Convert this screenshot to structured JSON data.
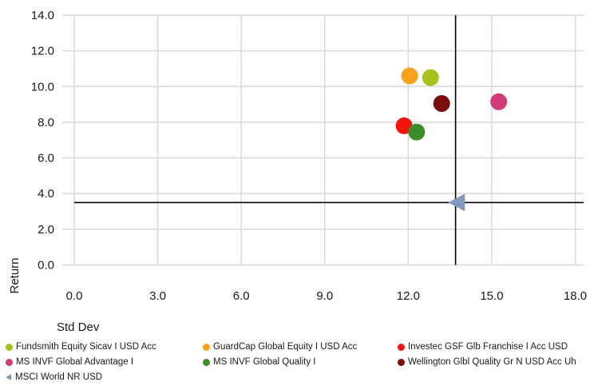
{
  "chart_data": {
    "type": "scatter",
    "xlabel": "Std Dev",
    "ylabel": "Return",
    "xlim": [
      0,
      18.3
    ],
    "ylim": [
      -0.2,
      14.0
    ],
    "x_ticks": [
      "0.0",
      "3.0",
      "6.0",
      "9.0",
      "12.0",
      "15.0",
      "18.0"
    ],
    "y_ticks": [
      "0.0",
      "2.0",
      "4.0",
      "6.0",
      "8.0",
      "10.0",
      "12.0",
      "14.0"
    ],
    "x_tick_values": [
      0,
      3,
      6,
      9,
      12,
      15,
      18
    ],
    "y_tick_values": [
      0,
      2,
      4,
      6,
      8,
      10,
      12,
      14
    ],
    "grid": true,
    "crosshair": {
      "x": 13.7,
      "y": 3.5
    },
    "legend_position": "bottom",
    "series": [
      {
        "name": "Fundsmith Equity Sicav I USD Acc",
        "color": "#a5c21d",
        "marker": "circle",
        "x": 12.8,
        "y": 10.5
      },
      {
        "name": "GuardCap Global Equity I USD Acc",
        "color": "#f7a21b",
        "marker": "circle",
        "x": 12.05,
        "y": 10.6
      },
      {
        "name": "Investec GSF Glb Franchise I Acc USD",
        "color": "#f5140c",
        "marker": "circle",
        "x": 11.85,
        "y": 7.8
      },
      {
        "name": "MS INVF Global Advantage I",
        "color": "#d13c76",
        "marker": "circle",
        "x": 15.25,
        "y": 9.15
      },
      {
        "name": "MS INVF Global Quality I",
        "color": "#3b8d27",
        "marker": "circle",
        "x": 12.3,
        "y": 7.45
      },
      {
        "name": "Wellington Glbl Quality Gr N USD Acc Uh",
        "color": "#7a0c0c",
        "marker": "circle",
        "x": 13.2,
        "y": 9.05
      },
      {
        "name": "MSCI World NR USD",
        "color": "#7f99bf",
        "marker": "triangle-left",
        "x": 13.75,
        "y": 3.5
      }
    ]
  }
}
